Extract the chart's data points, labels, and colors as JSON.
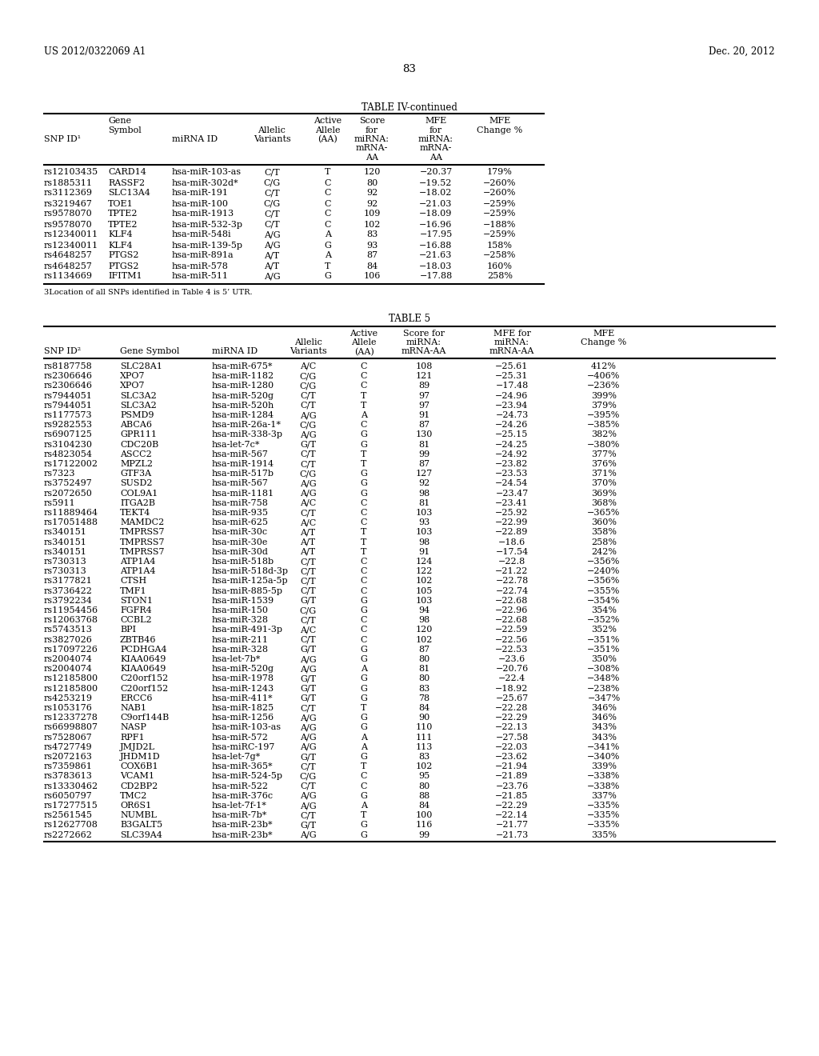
{
  "header_left": "US 2012/0322069 A1",
  "header_right": "Dec. 20, 2012",
  "page_number": "83",
  "table4_title": "TABLE IV-continued",
  "table4_footnote": "3Location of all SNPs identified in Table 4 is 5’ UTR.",
  "table4_data": [
    [
      "rs12103435",
      "CARD14",
      "hsa-miR-103-as",
      "C/T",
      "T",
      "120",
      "−20.37",
      "179%"
    ],
    [
      "rs1885311",
      "RASSF2",
      "hsa-miR-302d*",
      "C/G",
      "C",
      "80",
      "−19.52",
      "−260%"
    ],
    [
      "rs3112369",
      "SLC13A4",
      "hsa-miR-191",
      "C/T",
      "C",
      "92",
      "−18.02",
      "−260%"
    ],
    [
      "rs3219467",
      "TOE1",
      "hsa-miR-100",
      "C/G",
      "C",
      "92",
      "−21.03",
      "−259%"
    ],
    [
      "rs9578070",
      "TPTE2",
      "hsa-miR-1913",
      "C/T",
      "C",
      "109",
      "−18.09",
      "−259%"
    ],
    [
      "rs9578070",
      "TPTE2",
      "hsa-miR-532-3p",
      "C/T",
      "C",
      "102",
      "−16.96",
      "−188%"
    ],
    [
      "rs12340011",
      "KLF4",
      "hsa-miR-548i",
      "A/G",
      "A",
      "83",
      "−17.95",
      "−259%"
    ],
    [
      "rs12340011",
      "KLF4",
      "hsa-miR-139-5p",
      "A/G",
      "G",
      "93",
      "−16.88",
      "158%"
    ],
    [
      "rs4648257",
      "PTGS2",
      "hsa-miR-891a",
      "A/T",
      "A",
      "87",
      "−21.63",
      "−258%"
    ],
    [
      "rs4648257",
      "PTGS2",
      "hsa-miR-578",
      "A/T",
      "T",
      "84",
      "−18.03",
      "160%"
    ],
    [
      "rs1134669",
      "IFITM1",
      "hsa-miR-511",
      "A/G",
      "G",
      "106",
      "−17.88",
      "258%"
    ]
  ],
  "table5_title": "TABLE 5",
  "table5_data": [
    [
      "rs8187758",
      "SLC28A1",
      "hsa-miR-675*",
      "A/C",
      "C",
      "108",
      "−25.61",
      "412%"
    ],
    [
      "rs2306646",
      "XPO7",
      "hsa-miR-1182",
      "C/G",
      "C",
      "121",
      "−25.31",
      "−406%"
    ],
    [
      "rs2306646",
      "XPO7",
      "hsa-miR-1280",
      "C/G",
      "C",
      "89",
      "−17.48",
      "−236%"
    ],
    [
      "rs7944051",
      "SLC3A2",
      "hsa-miR-520g",
      "C/T",
      "T",
      "97",
      "−24.96",
      "399%"
    ],
    [
      "rs7944051",
      "SLC3A2",
      "hsa-miR-520h",
      "C/T",
      "T",
      "97",
      "−23.94",
      "379%"
    ],
    [
      "rs1177573",
      "PSMD9",
      "hsa-miR-1284",
      "A/G",
      "A",
      "91",
      "−24.73",
      "−395%"
    ],
    [
      "rs9282553",
      "ABCA6",
      "hsa-miR-26a-1*",
      "C/G",
      "C",
      "87",
      "−24.26",
      "−385%"
    ],
    [
      "rs6907125",
      "GPR111",
      "hsa-miR-338-3p",
      "A/G",
      "G",
      "130",
      "−25.15",
      "382%"
    ],
    [
      "rs3104230",
      "CDC20B",
      "hsa-let-7c*",
      "G/T",
      "G",
      "81",
      "−24.25",
      "−380%"
    ],
    [
      "rs4823054",
      "ASCC2",
      "hsa-miR-567",
      "C/T",
      "T",
      "99",
      "−24.92",
      "377%"
    ],
    [
      "rs17122002",
      "MPZL2",
      "hsa-miR-1914",
      "C/T",
      "T",
      "87",
      "−23.82",
      "376%"
    ],
    [
      "rs7323",
      "GTF3A",
      "hsa-miR-517b",
      "C/G",
      "G",
      "127",
      "−23.53",
      "371%"
    ],
    [
      "rs3752497",
      "SUSD2",
      "hsa-miR-567",
      "A/G",
      "G",
      "92",
      "−24.54",
      "370%"
    ],
    [
      "rs2072650",
      "COL9A1",
      "hsa-miR-1181",
      "A/G",
      "G",
      "98",
      "−23.47",
      "369%"
    ],
    [
      "rs5911",
      "ITGA2B",
      "hsa-miR-758",
      "A/C",
      "C",
      "81",
      "−23.41",
      "368%"
    ],
    [
      "rs11889464",
      "TEKT4",
      "hsa-miR-935",
      "C/T",
      "C",
      "103",
      "−25.92",
      "−365%"
    ],
    [
      "rs17051488",
      "MAMDC2",
      "hsa-miR-625",
      "A/C",
      "C",
      "93",
      "−22.99",
      "360%"
    ],
    [
      "rs340151",
      "TMPRSS7",
      "hsa-miR-30c",
      "A/T",
      "T",
      "103",
      "−22.89",
      "358%"
    ],
    [
      "rs340151",
      "TMPRSS7",
      "hsa-miR-30e",
      "A/T",
      "T",
      "98",
      "−18.6",
      "258%"
    ],
    [
      "rs340151",
      "TMPRSS7",
      "hsa-miR-30d",
      "A/T",
      "T",
      "91",
      "−17.54",
      "242%"
    ],
    [
      "rs730313",
      "ATP1A4",
      "hsa-miR-518b",
      "C/T",
      "C",
      "124",
      "−22.8",
      "−356%"
    ],
    [
      "rs730313",
      "ATP1A4",
      "hsa-miR-518d-3p",
      "C/T",
      "C",
      "122",
      "−21.22",
      "−240%"
    ],
    [
      "rs3177821",
      "CTSH",
      "hsa-miR-125a-5p",
      "C/T",
      "C",
      "102",
      "−22.78",
      "−356%"
    ],
    [
      "rs3736422",
      "TMF1",
      "hsa-miR-885-5p",
      "C/T",
      "C",
      "105",
      "−22.74",
      "−355%"
    ],
    [
      "rs3792234",
      "STON1",
      "hsa-miR-1539",
      "G/T",
      "G",
      "103",
      "−22.68",
      "−354%"
    ],
    [
      "rs11954456",
      "FGFR4",
      "hsa-miR-150",
      "C/G",
      "G",
      "94",
      "−22.96",
      "354%"
    ],
    [
      "rs12063768",
      "CCBL2",
      "hsa-miR-328",
      "C/T",
      "C",
      "98",
      "−22.68",
      "−352%"
    ],
    [
      "rs5743513",
      "BPI",
      "hsa-miR-491-3p",
      "A/C",
      "C",
      "120",
      "−22.59",
      "352%"
    ],
    [
      "rs3827026",
      "ZBTB46",
      "hsa-miR-211",
      "C/T",
      "C",
      "102",
      "−22.56",
      "−351%"
    ],
    [
      "rs17097226",
      "PCDHGA4",
      "hsa-miR-328",
      "G/T",
      "G",
      "87",
      "−22.53",
      "−351%"
    ],
    [
      "rs2004074",
      "KIAA0649",
      "hsa-let-7b*",
      "A/G",
      "G",
      "80",
      "−23.6",
      "350%"
    ],
    [
      "rs2004074",
      "KIAA0649",
      "hsa-miR-520g",
      "A/G",
      "A",
      "81",
      "−20.76",
      "−308%"
    ],
    [
      "rs12185800",
      "C20orf152",
      "hsa-miR-1978",
      "G/T",
      "G",
      "80",
      "−22.4",
      "−348%"
    ],
    [
      "rs12185800",
      "C20orf152",
      "hsa-miR-1243",
      "G/T",
      "G",
      "83",
      "−18.92",
      "−238%"
    ],
    [
      "rs4253219",
      "ERCC6",
      "hsa-miR-411*",
      "G/T",
      "G",
      "78",
      "−25.67",
      "−347%"
    ],
    [
      "rs1053176",
      "NAB1",
      "hsa-miR-1825",
      "C/T",
      "T",
      "84",
      "−22.28",
      "346%"
    ],
    [
      "rs12337278",
      "C9orf144B",
      "hsa-miR-1256",
      "A/G",
      "G",
      "90",
      "−22.29",
      "346%"
    ],
    [
      "rs66998807",
      "NASP",
      "hsa-miR-103-as",
      "A/G",
      "G",
      "110",
      "−22.13",
      "343%"
    ],
    [
      "rs7528067",
      "RPF1",
      "hsa-miR-572",
      "A/G",
      "A",
      "111",
      "−27.58",
      "343%"
    ],
    [
      "rs4727749",
      "JMJD2L",
      "hsa-miRC-197",
      "A/G",
      "A",
      "113",
      "−22.03",
      "−341%"
    ],
    [
      "rs2072163",
      "JHDM1D",
      "hsa-let-7g*",
      "G/T",
      "G",
      "83",
      "−23.62",
      "−340%"
    ],
    [
      "rs7359861",
      "COX6B1",
      "hsa-miR-365*",
      "C/T",
      "T",
      "102",
      "−21.94",
      "339%"
    ],
    [
      "rs3783613",
      "VCAM1",
      "hsa-miR-524-5p",
      "C/G",
      "C",
      "95",
      "−21.89",
      "−338%"
    ],
    [
      "rs13330462",
      "CD2BP2",
      "hsa-miR-522",
      "C/T",
      "C",
      "80",
      "−23.76",
      "−338%"
    ],
    [
      "rs6050797",
      "TMC2",
      "hsa-miR-376c",
      "A/G",
      "G",
      "88",
      "−21.85",
      "337%"
    ],
    [
      "rs17277515",
      "OR6S1",
      "hsa-let-7f-1*",
      "A/G",
      "A",
      "84",
      "−22.29",
      "−335%"
    ],
    [
      "rs2561545",
      "NUMBL",
      "hsa-miR-7b*",
      "C/T",
      "T",
      "100",
      "−22.14",
      "−335%"
    ],
    [
      "rs12627708",
      "B3GALT5",
      "hsa-miR-23b*",
      "G/T",
      "G",
      "116",
      "−21.77",
      "−335%"
    ],
    [
      "rs2272662",
      "SLC39A4",
      "hsa-miR-23b*",
      "A/G",
      "G",
      "99",
      "−21.73",
      "335%"
    ]
  ]
}
